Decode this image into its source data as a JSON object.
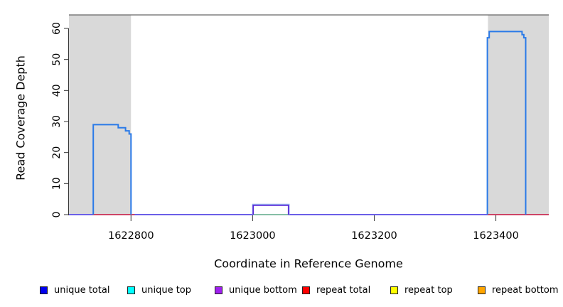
{
  "chart_data": {
    "type": "line",
    "title": "",
    "xlabel": "Coordinate in Reference Genome",
    "ylabel": "Read Coverage Depth",
    "xlim": [
      1622698,
      1623487
    ],
    "ylim": [
      0,
      64
    ],
    "x_ticks": [
      1622800,
      1623000,
      1623200,
      1623400
    ],
    "x_tick_labels": [
      "1622800",
      "1623000",
      "1623200",
      "1623400"
    ],
    "y_ticks": [
      0,
      10,
      20,
      30,
      40,
      50,
      60
    ],
    "y_tick_labels": [
      "0",
      "10",
      "20",
      "30",
      "40",
      "50",
      "60"
    ],
    "grid": false,
    "panel_background": "#ffffff",
    "panel_top_border_color": "#666666",
    "axis_color": "#333333",
    "shaded_region_color": "#d9d9d9",
    "shaded_regions": [
      {
        "name": "repeat-region-left",
        "x0": 1622698,
        "x1": 1622800
      },
      {
        "name": "repeat-region-right",
        "x0": 1623387,
        "x1": 1623487
      }
    ],
    "series": [
      {
        "name": "unique-bottom-and-total-zero-baseline",
        "color": "#6b5fe8",
        "width": 2,
        "points": [
          [
            1622698,
            0
          ],
          [
            1623487,
            0
          ]
        ]
      },
      {
        "name": "unique-top-zero-under-bump",
        "color": "#8fdd8f",
        "width": 1.6,
        "points": [
          [
            1623001,
            0
          ],
          [
            1623059,
            0
          ]
        ]
      },
      {
        "name": "repeat-total-zero-left-region",
        "color": "#ee3b3b",
        "width": 1.6,
        "points": [
          [
            1622737,
            0
          ],
          [
            1622806,
            0
          ]
        ]
      },
      {
        "name": "repeat-total-zero-right-region",
        "color": "#ee3b3b",
        "width": 1.6,
        "points": [
          [
            1623386,
            0
          ],
          [
            1623487,
            0
          ]
        ]
      },
      {
        "name": "unique-total-bump-halo",
        "color": "#9db7f0",
        "width": 1.6,
        "points": [
          [
            1623000,
            0
          ],
          [
            1623000,
            3.3
          ],
          [
            1623060,
            3.3
          ],
          [
            1623060,
            0
          ]
        ]
      },
      {
        "name": "unique-bottom-bump",
        "color": "#5a2bd8",
        "width": 1.8,
        "points": [
          [
            1623001,
            0
          ],
          [
            1623001,
            3
          ],
          [
            1623059,
            3
          ],
          [
            1623059,
            0
          ]
        ]
      },
      {
        "name": "unique-total-left-peak",
        "color": "#2a7ae8",
        "width": 2,
        "points": [
          [
            1622738,
            0
          ],
          [
            1622738,
            29
          ],
          [
            1622779,
            29
          ],
          [
            1622779,
            28
          ],
          [
            1622791,
            28
          ],
          [
            1622791,
            27
          ],
          [
            1622797,
            27
          ],
          [
            1622797,
            26
          ],
          [
            1622800,
            26
          ],
          [
            1622800,
            0
          ]
        ]
      },
      {
        "name": "unique-total-right-peak",
        "color": "#2a7ae8",
        "width": 2,
        "points": [
          [
            1623386,
            0
          ],
          [
            1623386,
            57
          ],
          [
            1623389,
            57
          ],
          [
            1623389,
            59
          ],
          [
            1623443,
            59
          ],
          [
            1623443,
            58
          ],
          [
            1623446,
            58
          ],
          [
            1623446,
            57
          ],
          [
            1623449,
            57
          ],
          [
            1623449,
            0
          ]
        ]
      }
    ],
    "legend_position": "bottom",
    "legend": [
      {
        "label": "unique total",
        "color": "#0000ee"
      },
      {
        "label": "unique top",
        "color": "#00ffff"
      },
      {
        "label": "unique bottom",
        "color": "#a020f0"
      },
      {
        "label": "repeat total",
        "color": "#ff0000"
      },
      {
        "label": "repeat top",
        "color": "#ffff00"
      },
      {
        "label": "repeat bottom",
        "color": "#ffa500"
      }
    ]
  }
}
